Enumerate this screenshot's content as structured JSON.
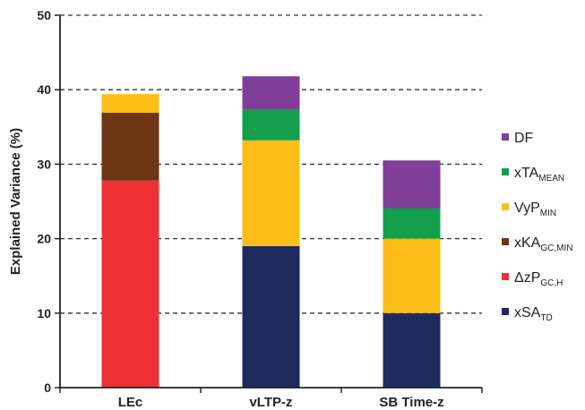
{
  "chart_data": {
    "type": "bar",
    "stacked": true,
    "categories": [
      "LEc",
      "vLTP-z",
      "SB Time-z"
    ],
    "ylabel": "Explained Variance (%)",
    "ylim": [
      0,
      50
    ],
    "yticks": [
      "0",
      "10",
      "20",
      "30",
      "40",
      "50"
    ],
    "grid": "horizontal-dashed",
    "legend_position": "right",
    "series": [
      {
        "name": "xSA",
        "sub": "TD",
        "color": "#1f2a5c",
        "values": [
          0,
          19.0,
          10.0
        ]
      },
      {
        "name": "ΔzP",
        "sub": "GC,H",
        "color": "#ee3034",
        "values": [
          27.8,
          0,
          0
        ]
      },
      {
        "name": "xKA",
        "sub": "GC,MIN",
        "color": "#6e3512",
        "values": [
          9.1,
          0,
          0
        ]
      },
      {
        "name": "VyP",
        "sub": "MIN",
        "color": "#fbbd16",
        "values": [
          2.5,
          14.2,
          10.0
        ]
      },
      {
        "name": "xTA",
        "sub": "MEAN",
        "color": "#149f4c",
        "values": [
          0,
          4.1,
          4.1
        ]
      },
      {
        "name": "DF",
        "sub": "",
        "color": "#7f3f98",
        "values": [
          0,
          4.5,
          6.4
        ]
      }
    ]
  }
}
